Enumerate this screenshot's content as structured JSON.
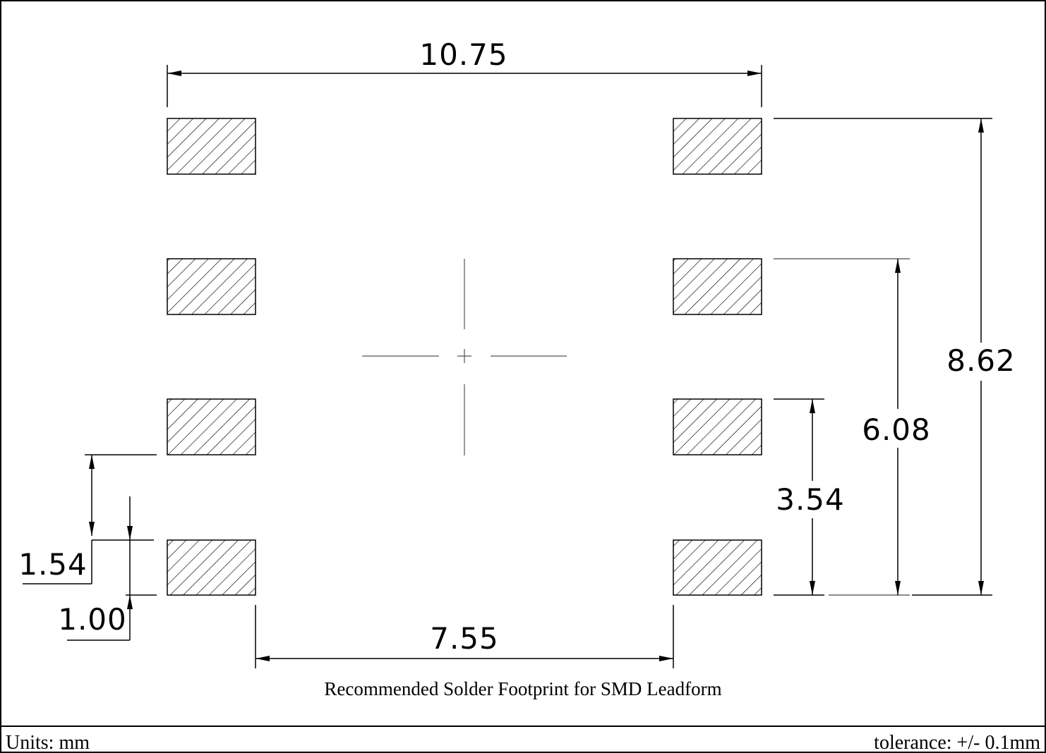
{
  "dimensions": {
    "overall_width": "10.75",
    "overall_height": "8.62",
    "mid_height": "6.08",
    "inner_height": "3.54",
    "pitch": "1.54",
    "pad_height": "1.00",
    "inner_width": "7.55"
  },
  "caption": "Recommended Solder Footprint for SMD Leadform",
  "footer": {
    "units": "Units: mm",
    "tolerance": "tolerance: +/- 0.1mm"
  },
  "colors": {
    "line": "#000000",
    "hatch": "#000000",
    "centerline": "#555555"
  }
}
